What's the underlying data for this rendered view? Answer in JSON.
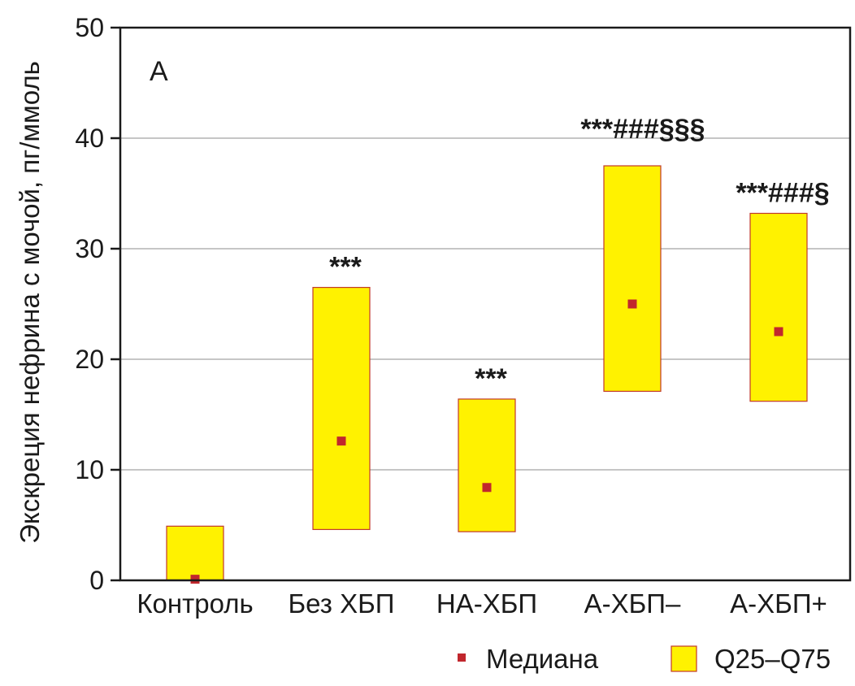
{
  "chart_data": {
    "type": "box",
    "panel_label": "А",
    "ylabel": "Экскреция нефрина с мочой, пг/ммоль",
    "ylim": [
      0,
      50
    ],
    "yticks": [
      0,
      10,
      20,
      30,
      40,
      50
    ],
    "grid": "horizontal",
    "categories": [
      "Контроль",
      "Без ХБП",
      "НА-ХБП",
      "А-ХБП–",
      "А-ХБП+"
    ],
    "q25": [
      0,
      4.6,
      4.4,
      17.1,
      16.2
    ],
    "q75": [
      4.9,
      26.5,
      16.4,
      37.5,
      33.2
    ],
    "median": [
      0.1,
      12.6,
      8.4,
      25.0,
      22.5
    ],
    "annotations": [
      "",
      "***",
      "***",
      "***###§§§",
      "***###§"
    ],
    "legend": {
      "position": "bottom-right",
      "median_label": "Медиана",
      "range_label": "Q25–Q75"
    },
    "colors": {
      "box_fill": "#fff200",
      "box_stroke": "#c0392b",
      "median": "#c1272d",
      "grid": "#b3b3b3",
      "axis": "#1a1a1a"
    }
  }
}
